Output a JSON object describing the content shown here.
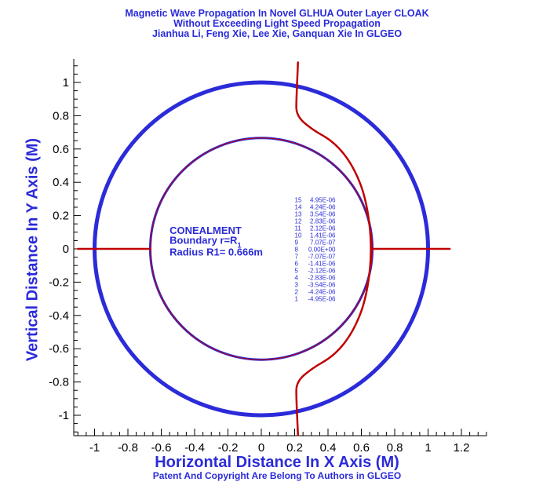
{
  "colors": {
    "accent": "#2b2bd9",
    "curve": "#c00000",
    "axis": "#000000"
  },
  "chart_data": {
    "type": "line",
    "title": [
      "Magnetic Wave Propagation In Novel GLHUA Outer Layer  CLOAK",
      "Without Exceeding Light Speed Propagation",
      "Jianhua Li, Feng Xie, Lee Xie, Ganquan Xie In GLGEO"
    ],
    "xlabel": "Horizontal Distance In X Axis (M)",
    "ylabel": "Vertical Distance In Y Axis (M)",
    "footer": "Patent And Copyright Are Belong To Authors in GLGEO",
    "xlim": [
      -1.1,
      1.35
    ],
    "ylim": [
      -1.12,
      1.12
    ],
    "x_ticks": [
      "-1",
      "-0.8",
      "-0.6",
      "-0.4",
      "-0.2",
      "0",
      "0.2",
      "0.4",
      "0.6",
      "0.8",
      "1",
      "1.2"
    ],
    "y_ticks": [
      "1",
      "0.8",
      "0.6",
      "0.4",
      "0.2",
      "0",
      "-0.2",
      "-0.4",
      "-0.6",
      "-0.8",
      "-1"
    ],
    "circles": [
      {
        "name": "outer-boundary",
        "radius": 1.0
      },
      {
        "name": "inner-boundary",
        "radius": 0.666
      }
    ],
    "wave_curves": [
      {
        "name": "vertical-wave-front",
        "points": [
          [
            0.22,
            1.12
          ],
          [
            0.21,
            0.9
          ],
          [
            0.21,
            0.8
          ],
          [
            0.3,
            0.72
          ],
          [
            0.44,
            0.64
          ],
          [
            0.55,
            0.5
          ],
          [
            0.63,
            0.3
          ],
          [
            0.666,
            0.0
          ],
          [
            0.63,
            -0.3
          ],
          [
            0.55,
            -0.5
          ],
          [
            0.44,
            -0.64
          ],
          [
            0.3,
            -0.72
          ],
          [
            0.21,
            -0.8
          ],
          [
            0.21,
            -0.9
          ],
          [
            0.22,
            -1.12
          ]
        ]
      },
      {
        "name": "horizontal-wave-left",
        "points": [
          [
            -1.1,
            0.0
          ],
          [
            -0.666,
            0.0
          ]
        ]
      },
      {
        "name": "horizontal-wave-right",
        "points": [
          [
            0.666,
            0.0
          ],
          [
            1.13,
            0.0
          ]
        ]
      }
    ],
    "annotation": {
      "line1": "CONEALMENT",
      "line2": "Boundary r=R",
      "line2_sub": "1",
      "line3": "Radius R1= 0.666m"
    },
    "legend": {
      "levels": [
        "15",
        "14",
        "13",
        "12",
        "11",
        "10",
        "9",
        "8",
        "7",
        "6",
        "5",
        "4",
        "3",
        "2",
        "1"
      ],
      "values": [
        "4.95E-06",
        "4.24E-06",
        "3.54E-06",
        "2.83E-06",
        "2.12E-06",
        "1.41E-06",
        "7.07E-07",
        "0.00E+00",
        "-7.07E-07",
        "-1.41E-06",
        "-2.12E-06",
        "-2.83E-06",
        "-3.54E-06",
        "-4.24E-06",
        "-4.95E-06"
      ]
    }
  }
}
